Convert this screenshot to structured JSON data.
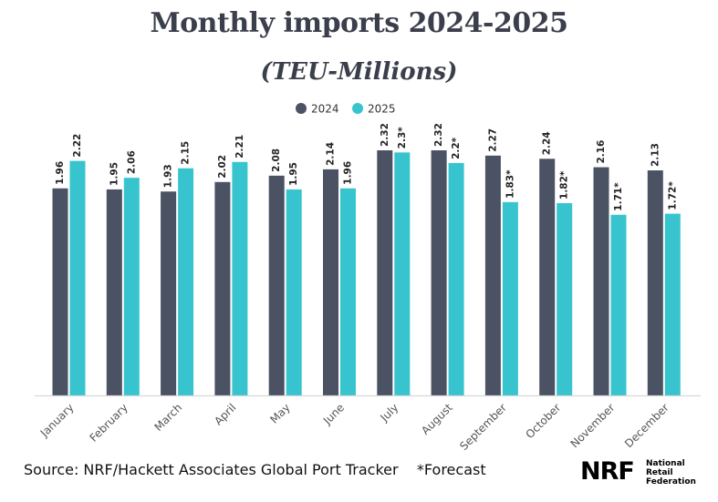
{
  "header": {
    "title": "Monthly imports 2024-2025",
    "subtitle": "(TEU-Millions)"
  },
  "footer": {
    "source": "Source: NRF/Hackett Associates Global Port Tracker    *Forecast"
  },
  "logo": {
    "mark": "NRF",
    "line1": "National",
    "line2": "Retail",
    "line3": "Federation"
  },
  "colors": {
    "series_2024": "#4a5263",
    "series_2025": "#38c4cf",
    "axis": "#d8d8d8",
    "text": "#222222"
  },
  "chart_data": {
    "type": "bar",
    "categories": [
      "January",
      "February",
      "March",
      "April",
      "May",
      "June",
      "July",
      "August",
      "September",
      "October",
      "November",
      "December"
    ],
    "series": [
      {
        "name": "2024",
        "values": [
          1.96,
          1.95,
          1.93,
          2.02,
          2.08,
          2.14,
          2.32,
          2.32,
          2.27,
          2.24,
          2.16,
          2.13
        ],
        "labels": [
          "1.96",
          "1.95",
          "1.93",
          "2.02",
          "2.08",
          "2.14",
          "2.32",
          "2.32",
          "2.27",
          "2.24",
          "2.16",
          "2.13"
        ]
      },
      {
        "name": "2025",
        "values": [
          2.22,
          2.06,
          2.15,
          2.21,
          1.95,
          1.96,
          2.3,
          2.2,
          1.83,
          1.82,
          1.71,
          1.72
        ],
        "labels": [
          "2.22",
          "2.06",
          "2.15",
          "2.21",
          "1.95",
          "1.96",
          "2.3*",
          "2.2*",
          "1.83*",
          "1.82*",
          "1.71*",
          "1.72*"
        ]
      }
    ],
    "ylim": [
      0,
      2.4
    ],
    "grid": false,
    "legend": "top-center"
  }
}
